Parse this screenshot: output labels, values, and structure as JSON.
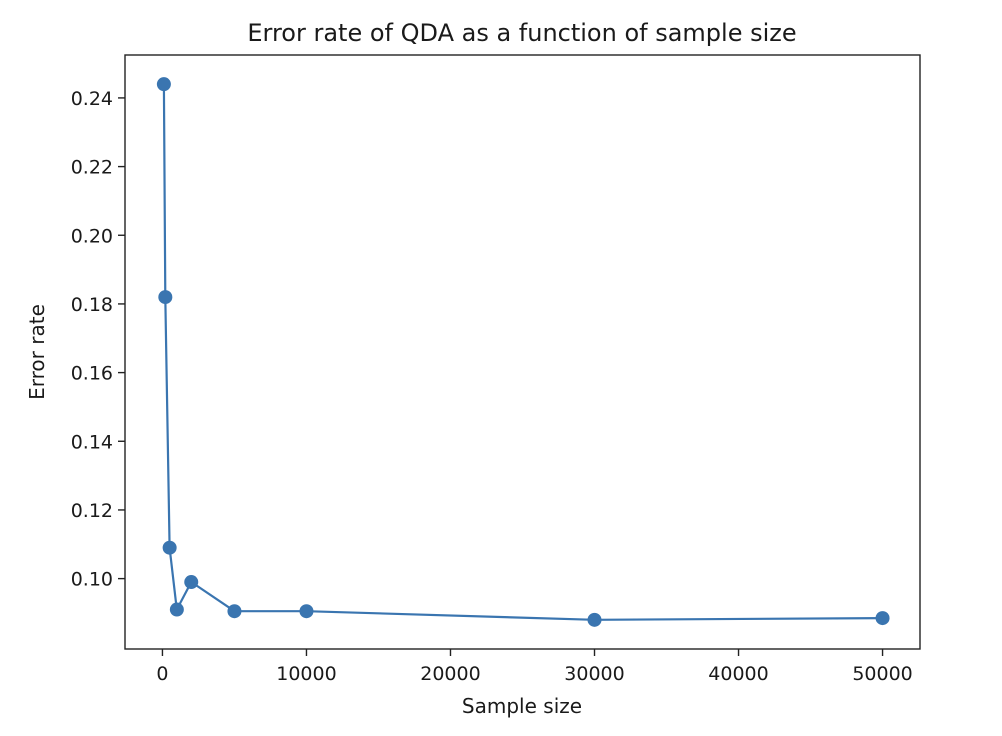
{
  "chart_data": {
    "type": "line",
    "title": "Error rate of QDA as a function of sample size",
    "xlabel": "Sample size",
    "ylabel": "Error rate",
    "xlim": [
      -2600,
      52600
    ],
    "ylim": [
      0.0795,
      0.2525
    ],
    "xticks": [
      0,
      10000,
      20000,
      30000,
      40000,
      50000
    ],
    "xtick_labels": [
      "0",
      "10000",
      "20000",
      "30000",
      "40000",
      "50000"
    ],
    "yticks": [
      0.1,
      0.12,
      0.14,
      0.16,
      0.18,
      0.2,
      0.22,
      0.24
    ],
    "ytick_labels": [
      "0.10",
      "0.12",
      "0.14",
      "0.16",
      "0.18",
      "0.20",
      "0.22",
      "0.24"
    ],
    "grid": false,
    "color": "#3a75b0",
    "series": [
      {
        "x": [
          100,
          200,
          500,
          1000,
          2000,
          5000,
          10000,
          30000,
          50000
        ],
        "y": [
          0.244,
          0.182,
          0.109,
          0.091,
          0.099,
          0.0905,
          0.0905,
          0.088,
          0.0885
        ]
      }
    ]
  }
}
